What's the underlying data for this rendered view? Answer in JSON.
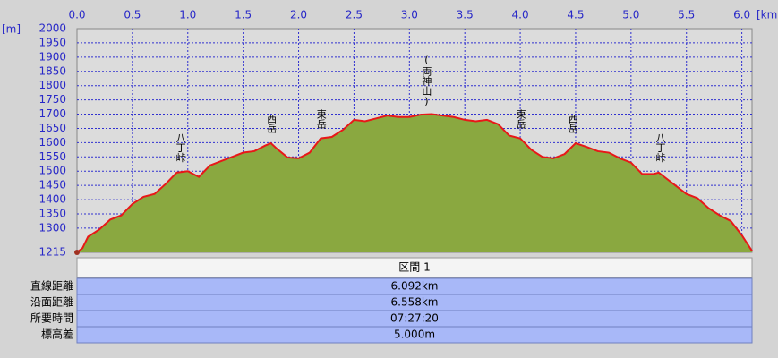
{
  "chart_data": {
    "type": "area",
    "x_unit": "[km]",
    "y_unit": "[m]",
    "x": [
      0,
      0.05,
      0.1,
      0.2,
      0.3,
      0.4,
      0.5,
      0.6,
      0.7,
      0.8,
      0.9,
      1.0,
      1.1,
      1.2,
      1.3,
      1.4,
      1.5,
      1.6,
      1.7,
      1.75,
      1.8,
      1.9,
      2.0,
      2.1,
      2.2,
      2.3,
      2.4,
      2.5,
      2.6,
      2.7,
      2.8,
      2.9,
      3.0,
      3.1,
      3.2,
      3.3,
      3.4,
      3.5,
      3.6,
      3.7,
      3.8,
      3.9,
      4.0,
      4.1,
      4.2,
      4.3,
      4.4,
      4.5,
      4.6,
      4.7,
      4.8,
      4.9,
      5.0,
      5.1,
      5.2,
      5.25,
      5.3,
      5.4,
      5.5,
      5.6,
      5.7,
      5.8,
      5.9,
      6.0,
      6.092
    ],
    "series": [
      {
        "color": "#e81818",
        "fill": "#8aa840",
        "values": [
          1215,
          1230,
          1270,
          1295,
          1330,
          1345,
          1385,
          1410,
          1420,
          1455,
          1495,
          1500,
          1480,
          1520,
          1535,
          1550,
          1565,
          1570,
          1590,
          1598,
          1580,
          1548,
          1545,
          1565,
          1615,
          1620,
          1645,
          1680,
          1675,
          1685,
          1695,
          1690,
          1690,
          1698,
          1700,
          1695,
          1690,
          1680,
          1675,
          1680,
          1665,
          1625,
          1615,
          1575,
          1550,
          1545,
          1560,
          1598,
          1585,
          1570,
          1565,
          1545,
          1530,
          1490,
          1490,
          1495,
          1480,
          1450,
          1420,
          1405,
          1370,
          1345,
          1325,
          1275,
          1220
        ]
      }
    ],
    "xlim": [
      0,
      6.092
    ],
    "xticks": [
      {
        "value": 0,
        "label": "0.0"
      },
      0.5,
      {
        "value": 1,
        "label": "1.0"
      },
      1.5,
      {
        "value": 2,
        "label": "2.0"
      },
      2.5,
      {
        "value": 3,
        "label": "3.0"
      },
      3.5,
      {
        "value": 4,
        "label": "4.0"
      },
      4.5,
      {
        "value": 5,
        "label": "5.0"
      },
      5.5,
      {
        "value": 6,
        "label": "6.0"
      }
    ],
    "ylim": [
      1215,
      2000
    ],
    "yticks": [
      1215,
      1300,
      1350,
      1400,
      1450,
      1500,
      1550,
      1600,
      1650,
      1700,
      1750,
      1800,
      1850,
      1900,
      1950,
      2000
    ],
    "grid": true,
    "annotations": [
      {
        "text": "八丁峠",
        "x": 0.93
      },
      {
        "text": "西岳",
        "x": 1.75
      },
      {
        "text": "東岳",
        "x": 2.2
      },
      {
        "text": "(両神山)",
        "x": 3.15
      },
      {
        "text": "東岳",
        "x": 4.0
      },
      {
        "text": "西岳",
        "x": 4.47
      },
      {
        "text": "八丁峠",
        "x": 5.26
      }
    ]
  },
  "table": {
    "header": "区間 1",
    "rows": [
      [
        "直線距離",
        "6.092km"
      ],
      [
        "沿面距離",
        "6.558km"
      ],
      [
        "所要時間",
        "07:27:20"
      ],
      [
        "標高差",
        "5.000m"
      ]
    ]
  }
}
